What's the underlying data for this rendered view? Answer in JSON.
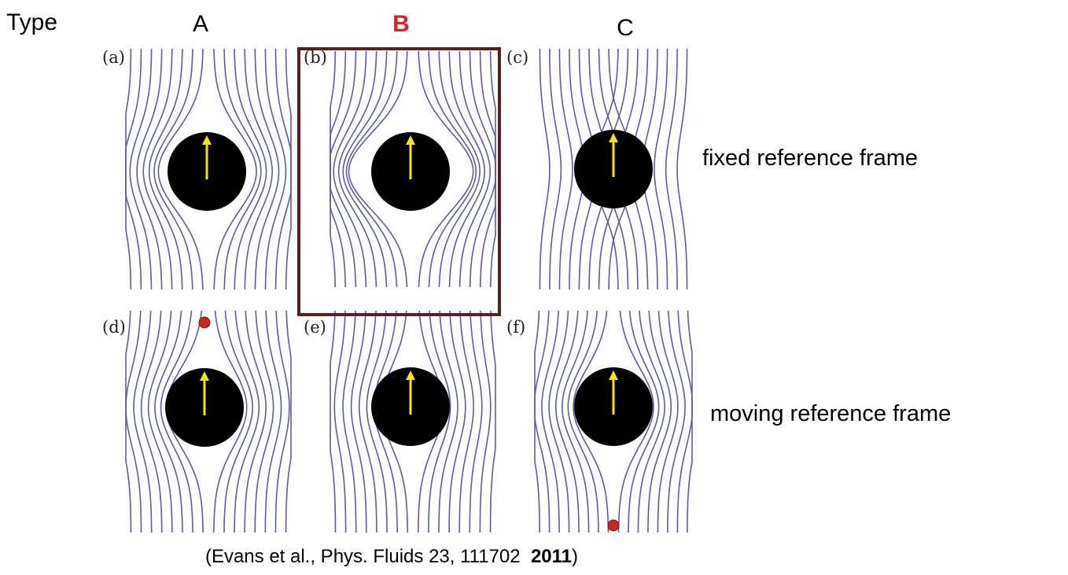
{
  "header": {
    "type_label": "Type",
    "columns": [
      "A",
      "B",
      "C"
    ]
  },
  "panels": [
    {
      "label": "(a)"
    },
    {
      "label": "(b)"
    },
    {
      "label": "(c)"
    },
    {
      "label": "(d)"
    },
    {
      "label": "(e)"
    },
    {
      "label": "(f)"
    }
  ],
  "rows": [
    "fixed reference frame",
    "moving reference frame"
  ],
  "citation": {
    "prefix": "(Evans et al., Phys. Fluids 23, 111702  ",
    "year": "2011",
    "suffix": ")"
  }
}
